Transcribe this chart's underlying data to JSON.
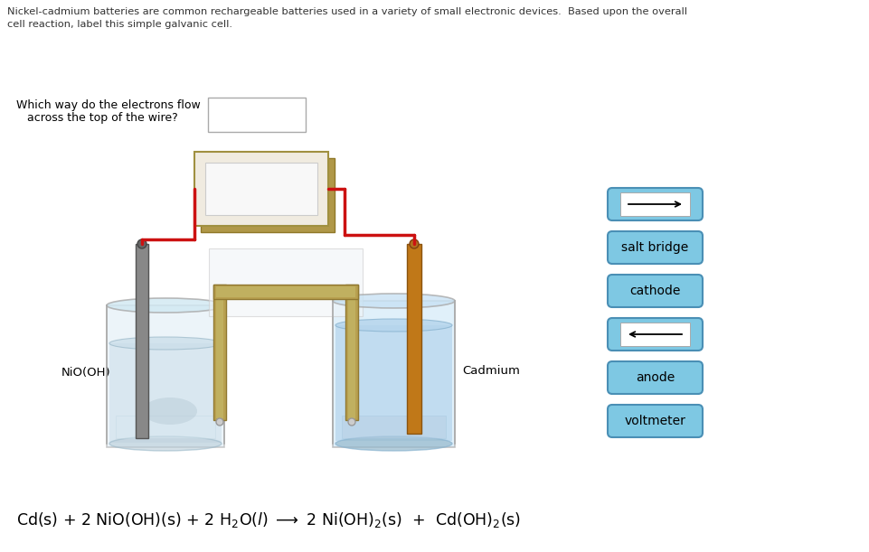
{
  "title_line1": "Nickel-cadmium batteries are common rechargeable batteries used in a variety of small electronic devices.  Based upon the overall",
  "title_line2": "cell reaction, label this simple galvanic cell.",
  "question_text": "Which way do the electrons flow\n   across the top of the wire?",
  "nio_label": "NiO(OH)",
  "cadmium_label": "Cadmium",
  "bg_color": "#ffffff",
  "legend_box_color": "#7ec8e3",
  "legend_box_edge": "#4a8fb5",
  "wire_color": "#cc1111",
  "bridge_color": "#b8a050",
  "bridge_inner": "#c0b060",
  "voltmeter_outer": "#c8a860",
  "voltmeter_inner": "#d4b870",
  "voltmeter_face": "#f0ebe0",
  "voltmeter_screen": "#f8f8f8",
  "electrode_gray": "#888888",
  "electrode_orange": "#c07818",
  "beaker_outline": "#aaaaaa",
  "beaker_fill_left": "#e8f2f8",
  "beaker_liquid_left": "#dceef6",
  "beaker_fill_right": "#cce4f4",
  "beaker_liquid_right": "#b4d4ec"
}
